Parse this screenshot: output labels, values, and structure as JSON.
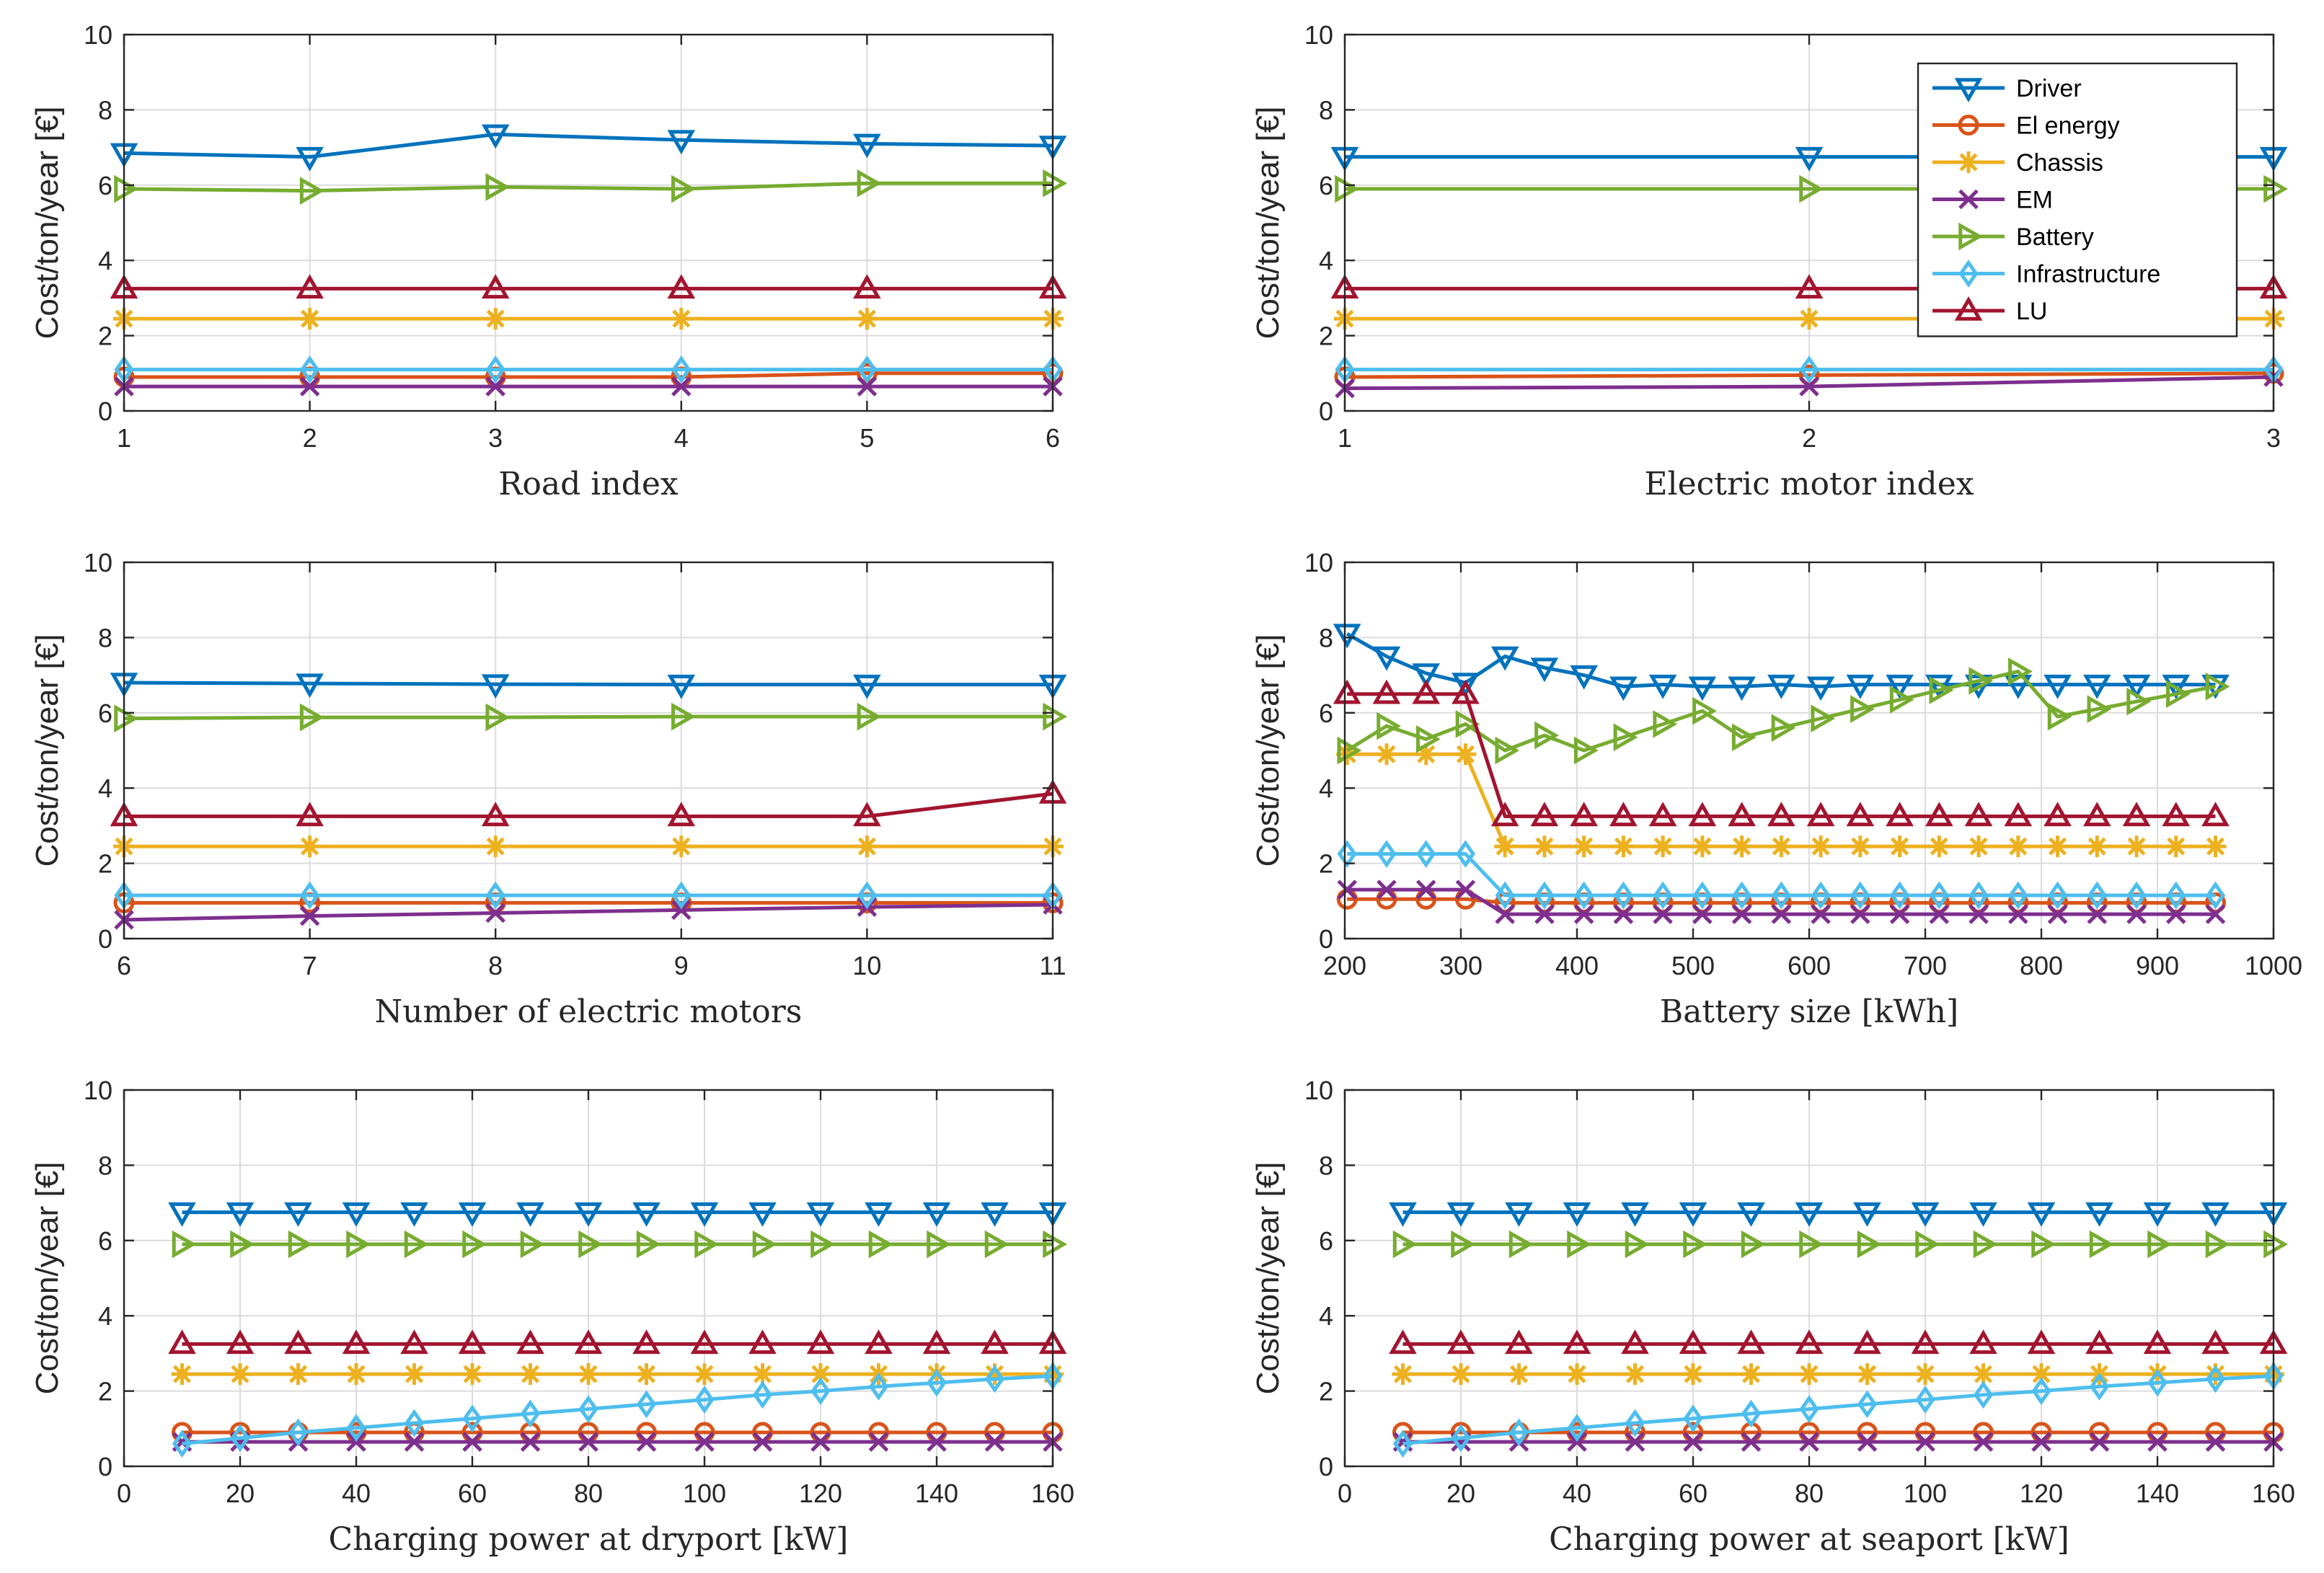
{
  "colors": {
    "Driver": "#0072BD",
    "El energy": "#D95319",
    "Chassis": "#EDB120",
    "EM": "#7E2F8E",
    "Battery": "#77AC30",
    "Infrastructure": "#4DBEEE",
    "LU": "#A2142F"
  },
  "markers": {
    "Driver": "triangle-down",
    "El energy": "circle",
    "Chassis": "asterisk",
    "EM": "x-cross",
    "Battery": "triangle-right",
    "Infrastructure": "diamond",
    "LU": "triangle-up"
  },
  "legend": {
    "placement": "top-right of panel 2",
    "entries": [
      "Driver",
      "El energy",
      "Chassis",
      "EM",
      "Battery",
      "Infrastructure",
      "LU"
    ]
  },
  "chart_data": [
    {
      "type": "line",
      "xlabel": "Road index",
      "ylabel": "Cost/ton/year [€]",
      "xlim": [
        1,
        6
      ],
      "ylim": [
        0,
        10
      ],
      "xticks": [
        1,
        2,
        3,
        4,
        5,
        6
      ],
      "yticks": [
        0,
        2,
        4,
        6,
        8,
        10
      ],
      "x": [
        1,
        2,
        3,
        4,
        5,
        6
      ],
      "series": [
        {
          "name": "Driver",
          "values": [
            6.85,
            6.75,
            7.35,
            7.2,
            7.1,
            7.05
          ]
        },
        {
          "name": "El energy",
          "values": [
            0.9,
            0.9,
            0.9,
            0.9,
            1.0,
            1.0
          ]
        },
        {
          "name": "Chassis",
          "values": [
            2.45,
            2.45,
            2.45,
            2.45,
            2.45,
            2.45
          ]
        },
        {
          "name": "EM",
          "values": [
            0.65,
            0.65,
            0.65,
            0.65,
            0.65,
            0.65
          ]
        },
        {
          "name": "Battery",
          "values": [
            5.9,
            5.85,
            5.95,
            5.9,
            6.05,
            6.05
          ]
        },
        {
          "name": "Infrastructure",
          "values": [
            1.1,
            1.1,
            1.1,
            1.1,
            1.1,
            1.1
          ]
        },
        {
          "name": "LU",
          "values": [
            3.25,
            3.25,
            3.25,
            3.25,
            3.25,
            3.25
          ]
        }
      ]
    },
    {
      "type": "line",
      "xlabel": "Electric motor index",
      "ylabel": "Cost/ton/year [€]",
      "xlim": [
        1,
        3
      ],
      "ylim": [
        0,
        10
      ],
      "xticks": [
        1,
        2,
        3
      ],
      "yticks": [
        0,
        2,
        4,
        6,
        8,
        10
      ],
      "x": [
        1,
        2,
        3
      ],
      "legend": true,
      "series": [
        {
          "name": "Driver",
          "values": [
            6.75,
            6.75,
            6.75
          ]
        },
        {
          "name": "El energy",
          "values": [
            0.9,
            0.95,
            1.0
          ]
        },
        {
          "name": "Chassis",
          "values": [
            2.45,
            2.45,
            2.45
          ]
        },
        {
          "name": "EM",
          "values": [
            0.6,
            0.65,
            0.9
          ]
        },
        {
          "name": "Battery",
          "values": [
            5.9,
            5.9,
            5.9
          ]
        },
        {
          "name": "Infrastructure",
          "values": [
            1.1,
            1.1,
            1.1
          ]
        },
        {
          "name": "LU",
          "values": [
            3.25,
            3.25,
            3.25
          ]
        }
      ]
    },
    {
      "type": "line",
      "xlabel": "Number of electric motors",
      "ylabel": "Cost/ton/year [€]",
      "xlim": [
        6,
        11
      ],
      "ylim": [
        0,
        10
      ],
      "xticks": [
        6,
        7,
        8,
        9,
        10,
        11
      ],
      "yticks": [
        0,
        2,
        4,
        6,
        8,
        10
      ],
      "x": [
        6,
        7,
        8,
        9,
        10,
        11
      ],
      "series": [
        {
          "name": "Driver",
          "values": [
            6.8,
            6.78,
            6.76,
            6.75,
            6.75,
            6.75
          ]
        },
        {
          "name": "El energy",
          "values": [
            0.95,
            0.95,
            0.95,
            0.95,
            0.95,
            0.95
          ]
        },
        {
          "name": "Chassis",
          "values": [
            2.45,
            2.45,
            2.45,
            2.45,
            2.45,
            2.45
          ]
        },
        {
          "name": "EM",
          "values": [
            0.5,
            0.6,
            0.68,
            0.76,
            0.84,
            0.9
          ]
        },
        {
          "name": "Battery",
          "values": [
            5.85,
            5.88,
            5.88,
            5.9,
            5.9,
            5.9
          ]
        },
        {
          "name": "Infrastructure",
          "values": [
            1.15,
            1.15,
            1.15,
            1.15,
            1.15,
            1.15
          ]
        },
        {
          "name": "LU",
          "values": [
            3.25,
            3.25,
            3.25,
            3.25,
            3.25,
            3.85
          ]
        }
      ]
    },
    {
      "type": "line",
      "xlabel": "Battery size [kWh]",
      "ylabel": "Cost/ton/year [€]",
      "xlim": [
        200,
        1000
      ],
      "ylim": [
        0,
        10
      ],
      "xticks": [
        200,
        300,
        400,
        500,
        600,
        700,
        800,
        900,
        1000
      ],
      "yticks": [
        0,
        2,
        4,
        6,
        8,
        10
      ],
      "x": [
        202,
        236,
        270,
        304,
        338,
        372,
        406,
        440,
        474,
        508,
        542,
        576,
        610,
        644,
        678,
        712,
        746,
        780,
        814,
        848,
        882,
        916,
        950
      ],
      "series": [
        {
          "name": "Driver",
          "values": [
            8.1,
            7.5,
            7.05,
            6.8,
            7.5,
            7.2,
            7.0,
            6.7,
            6.75,
            6.7,
            6.7,
            6.75,
            6.7,
            6.75,
            6.75,
            6.75,
            6.75,
            6.75,
            6.75,
            6.75,
            6.75,
            6.75,
            6.75
          ]
        },
        {
          "name": "El energy",
          "values": [
            1.05,
            1.05,
            1.05,
            1.05,
            0.95,
            0.95,
            0.95,
            0.95,
            0.95,
            0.95,
            0.95,
            0.95,
            0.95,
            0.95,
            0.95,
            0.95,
            0.95,
            0.95,
            0.95,
            0.95,
            0.95,
            0.95,
            0.95
          ]
        },
        {
          "name": "Chassis",
          "values": [
            4.9,
            4.9,
            4.9,
            4.9,
            2.45,
            2.45,
            2.45,
            2.45,
            2.45,
            2.45,
            2.45,
            2.45,
            2.45,
            2.45,
            2.45,
            2.45,
            2.45,
            2.45,
            2.45,
            2.45,
            2.45,
            2.45,
            2.45
          ]
        },
        {
          "name": "EM",
          "values": [
            1.3,
            1.3,
            1.3,
            1.3,
            0.65,
            0.65,
            0.65,
            0.65,
            0.65,
            0.65,
            0.65,
            0.65,
            0.65,
            0.65,
            0.65,
            0.65,
            0.65,
            0.65,
            0.65,
            0.65,
            0.65,
            0.65,
            0.65
          ]
        },
        {
          "name": "Battery",
          "values": [
            5.0,
            5.65,
            5.3,
            5.7,
            5.0,
            5.4,
            5.0,
            5.35,
            5.7,
            6.05,
            5.35,
            5.6,
            5.85,
            6.1,
            6.35,
            6.6,
            6.85,
            7.1,
            5.9,
            6.1,
            6.3,
            6.5,
            6.7
          ]
        },
        {
          "name": "Infrastructure",
          "values": [
            2.25,
            2.25,
            2.25,
            2.25,
            1.15,
            1.15,
            1.15,
            1.15,
            1.15,
            1.15,
            1.15,
            1.15,
            1.15,
            1.15,
            1.15,
            1.15,
            1.15,
            1.15,
            1.15,
            1.15,
            1.15,
            1.15,
            1.15
          ]
        },
        {
          "name": "LU",
          "values": [
            6.5,
            6.5,
            6.5,
            6.5,
            3.25,
            3.25,
            3.25,
            3.25,
            3.25,
            3.25,
            3.25,
            3.25,
            3.25,
            3.25,
            3.25,
            3.25,
            3.25,
            3.25,
            3.25,
            3.25,
            3.25,
            3.25,
            3.25
          ]
        }
      ]
    },
    {
      "type": "line",
      "xlabel": "Charging power at dryport [kW]",
      "ylabel": "Cost/ton/year [€]",
      "xlim": [
        0,
        160
      ],
      "ylim": [
        0,
        10
      ],
      "xticks": [
        0,
        20,
        40,
        60,
        80,
        100,
        120,
        140,
        160
      ],
      "yticks": [
        0,
        2,
        4,
        6,
        8,
        10
      ],
      "x": [
        10,
        20,
        30,
        40,
        50,
        60,
        70,
        80,
        90,
        100,
        110,
        120,
        130,
        140,
        150,
        160
      ],
      "series": [
        {
          "name": "Driver",
          "values": [
            6.75,
            6.75,
            6.75,
            6.75,
            6.75,
            6.75,
            6.75,
            6.75,
            6.75,
            6.75,
            6.75,
            6.75,
            6.75,
            6.75,
            6.75,
            6.75
          ]
        },
        {
          "name": "El energy",
          "values": [
            0.9,
            0.9,
            0.9,
            0.9,
            0.9,
            0.9,
            0.9,
            0.9,
            0.9,
            0.9,
            0.9,
            0.9,
            0.9,
            0.9,
            0.9,
            0.9
          ]
        },
        {
          "name": "Chassis",
          "values": [
            2.45,
            2.45,
            2.45,
            2.45,
            2.45,
            2.45,
            2.45,
            2.45,
            2.45,
            2.45,
            2.45,
            2.45,
            2.45,
            2.45,
            2.45,
            2.45
          ]
        },
        {
          "name": "EM",
          "values": [
            0.65,
            0.65,
            0.65,
            0.65,
            0.65,
            0.65,
            0.65,
            0.65,
            0.65,
            0.65,
            0.65,
            0.65,
            0.65,
            0.65,
            0.65,
            0.65
          ]
        },
        {
          "name": "Battery",
          "values": [
            5.9,
            5.9,
            5.9,
            5.9,
            5.9,
            5.9,
            5.9,
            5.9,
            5.9,
            5.9,
            5.9,
            5.9,
            5.9,
            5.9,
            5.9,
            5.9
          ]
        },
        {
          "name": "Infrastructure",
          "values": [
            0.6,
            0.75,
            0.9,
            1.02,
            1.15,
            1.27,
            1.4,
            1.52,
            1.65,
            1.77,
            1.9,
            2.0,
            2.12,
            2.22,
            2.32,
            2.4
          ]
        },
        {
          "name": "LU",
          "values": [
            3.25,
            3.25,
            3.25,
            3.25,
            3.25,
            3.25,
            3.25,
            3.25,
            3.25,
            3.25,
            3.25,
            3.25,
            3.25,
            3.25,
            3.25,
            3.25
          ]
        }
      ]
    },
    {
      "type": "line",
      "xlabel": "Charging power at seaport [kW]",
      "ylabel": "Cost/ton/year [€]",
      "xlim": [
        0,
        160
      ],
      "ylim": [
        0,
        10
      ],
      "xticks": [
        0,
        20,
        40,
        60,
        80,
        100,
        120,
        140,
        160
      ],
      "yticks": [
        0,
        2,
        4,
        6,
        8,
        10
      ],
      "x": [
        10,
        20,
        30,
        40,
        50,
        60,
        70,
        80,
        90,
        100,
        110,
        120,
        130,
        140,
        150,
        160
      ],
      "series": [
        {
          "name": "Driver",
          "values": [
            6.75,
            6.75,
            6.75,
            6.75,
            6.75,
            6.75,
            6.75,
            6.75,
            6.75,
            6.75,
            6.75,
            6.75,
            6.75,
            6.75,
            6.75,
            6.75
          ]
        },
        {
          "name": "El energy",
          "values": [
            0.9,
            0.9,
            0.9,
            0.9,
            0.9,
            0.9,
            0.9,
            0.9,
            0.9,
            0.9,
            0.9,
            0.9,
            0.9,
            0.9,
            0.9,
            0.9
          ]
        },
        {
          "name": "Chassis",
          "values": [
            2.45,
            2.45,
            2.45,
            2.45,
            2.45,
            2.45,
            2.45,
            2.45,
            2.45,
            2.45,
            2.45,
            2.45,
            2.45,
            2.45,
            2.45,
            2.45
          ]
        },
        {
          "name": "EM",
          "values": [
            0.65,
            0.65,
            0.65,
            0.65,
            0.65,
            0.65,
            0.65,
            0.65,
            0.65,
            0.65,
            0.65,
            0.65,
            0.65,
            0.65,
            0.65,
            0.65
          ]
        },
        {
          "name": "Battery",
          "values": [
            5.9,
            5.9,
            5.9,
            5.9,
            5.9,
            5.9,
            5.9,
            5.9,
            5.9,
            5.9,
            5.9,
            5.9,
            5.9,
            5.9,
            5.9,
            5.9
          ]
        },
        {
          "name": "Infrastructure",
          "values": [
            0.6,
            0.75,
            0.9,
            1.02,
            1.15,
            1.27,
            1.4,
            1.52,
            1.65,
            1.77,
            1.9,
            2.0,
            2.12,
            2.22,
            2.32,
            2.4
          ]
        },
        {
          "name": "LU",
          "values": [
            3.25,
            3.25,
            3.25,
            3.25,
            3.25,
            3.25,
            3.25,
            3.25,
            3.25,
            3.25,
            3.25,
            3.25,
            3.25,
            3.25,
            3.25,
            3.25
          ]
        }
      ]
    }
  ]
}
